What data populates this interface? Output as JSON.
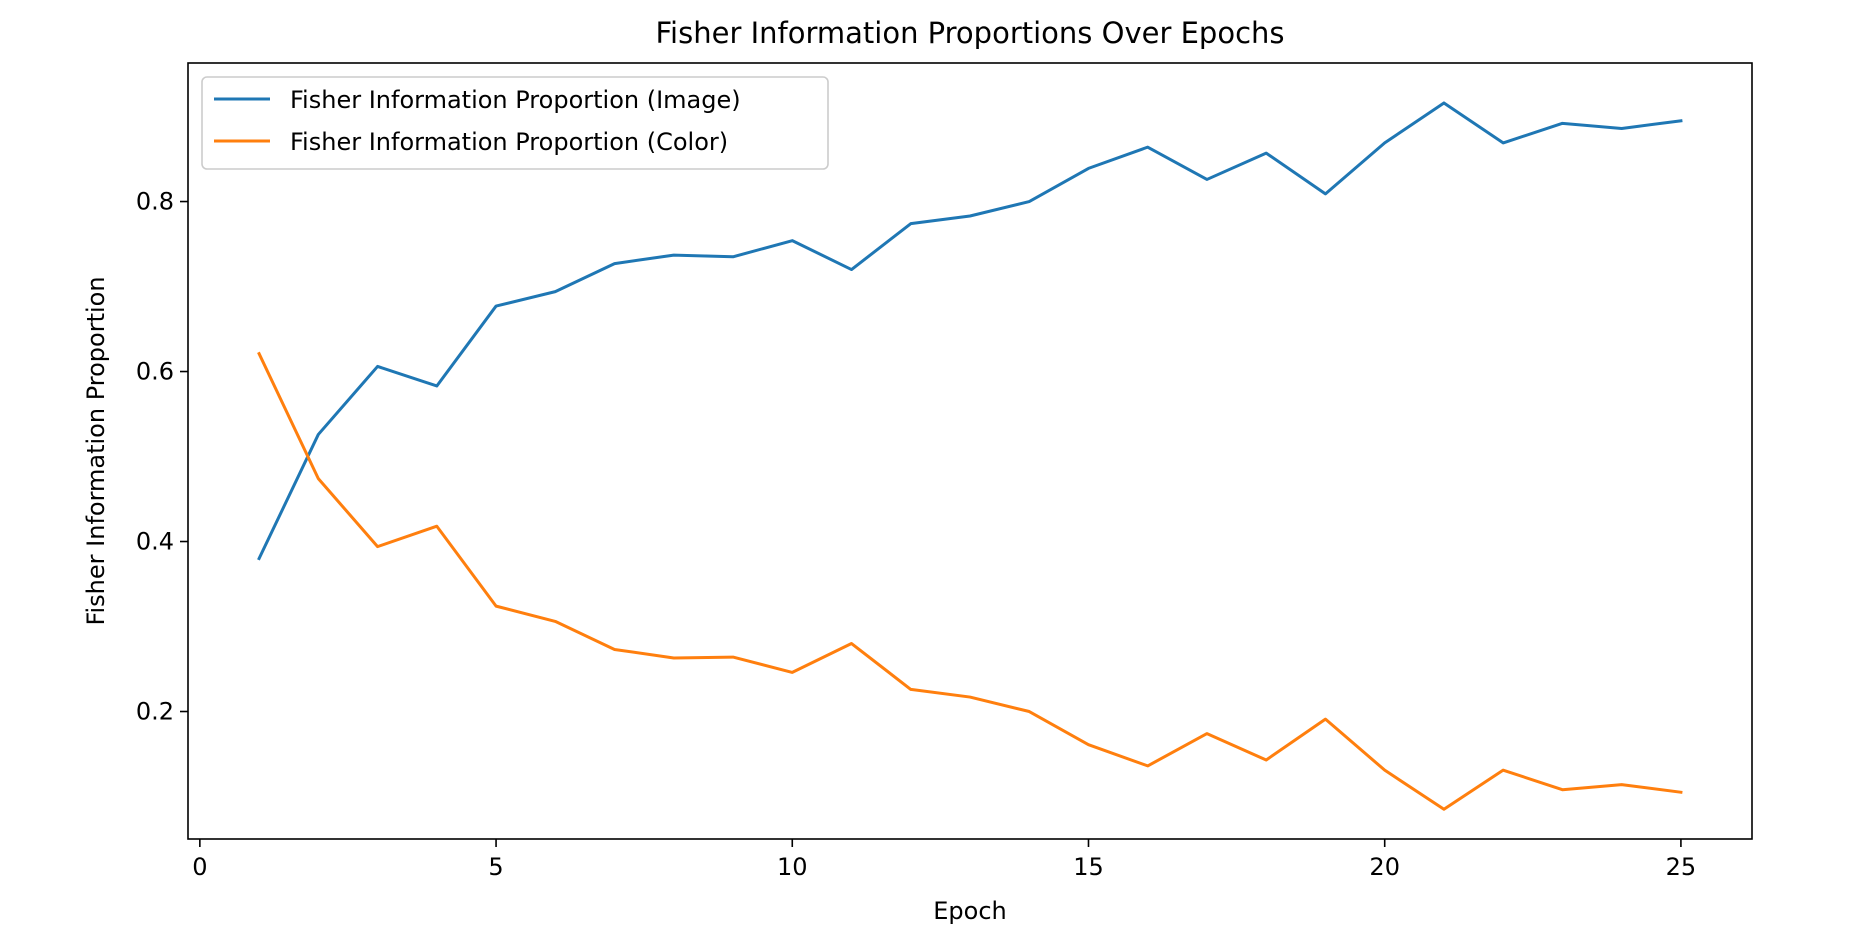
{
  "chart_data": {
    "type": "line",
    "title": "Fisher Information Proportions Over Epochs",
    "xlabel": "Epoch",
    "ylabel": "Fisher Information Proportion",
    "xlim": [
      -0.2,
      26.2
    ],
    "ylim": [
      0.05,
      0.963
    ],
    "xticks": [
      0,
      5,
      10,
      15,
      20,
      25
    ],
    "yticks": [
      0.2,
      0.4,
      0.6,
      0.8
    ],
    "ytick_labels": [
      "0.2",
      "0.4",
      "0.6",
      "0.8"
    ],
    "xtick_labels": [
      "0",
      "5",
      "10",
      "15",
      "20",
      "25"
    ],
    "grid": false,
    "legend_position": "top-left",
    "x": [
      1,
      2,
      3,
      4,
      5,
      6,
      7,
      8,
      9,
      10,
      11,
      12,
      13,
      14,
      15,
      16,
      17,
      18,
      19,
      20,
      21,
      22,
      23,
      24,
      25
    ],
    "series": [
      {
        "name": "Fisher Information Proportion (Image)",
        "color": "#1f77b4",
        "values": [
          0.38,
          0.526,
          0.606,
          0.583,
          0.677,
          0.694,
          0.727,
          0.737,
          0.735,
          0.754,
          0.72,
          0.774,
          0.783,
          0.8,
          0.839,
          0.864,
          0.826,
          0.857,
          0.809,
          0.869,
          0.916,
          0.869,
          0.892,
          0.886,
          0.895
        ]
      },
      {
        "name": "Fisher Information Proportion (Color)",
        "color": "#ff7f0e",
        "values": [
          0.621,
          0.474,
          0.394,
          0.418,
          0.324,
          0.306,
          0.273,
          0.263,
          0.264,
          0.246,
          0.28,
          0.226,
          0.217,
          0.2,
          0.161,
          0.136,
          0.174,
          0.143,
          0.191,
          0.131,
          0.085,
          0.131,
          0.108,
          0.114,
          0.105
        ]
      }
    ]
  }
}
